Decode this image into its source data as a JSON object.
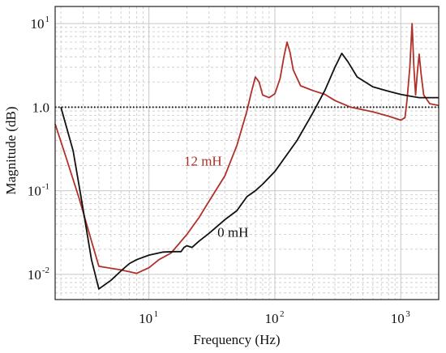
{
  "chart_data": {
    "type": "line",
    "title": "",
    "xlabel": "Frequency (Hz)",
    "ylabel": "Magnitude (dB)",
    "xscale": "log",
    "yscale": "log",
    "xlim": [
      1.8,
      2000
    ],
    "ylim": [
      0.005,
      16
    ],
    "grid": true,
    "x_ticks": [
      {
        "base": "10",
        "exp": "1",
        "value": 10
      },
      {
        "base": "10",
        "exp": "2",
        "value": 100
      },
      {
        "base": "10",
        "exp": "3",
        "value": 1000
      }
    ],
    "y_ticks": [
      {
        "base": "10",
        "exp": "-2",
        "value": 0.01
      },
      {
        "base": "10",
        "exp": "-1",
        "value": 0.1
      },
      {
        "base": "1.0",
        "exp": "",
        "value": 1
      },
      {
        "base": "10",
        "exp": "1",
        "value": 10
      }
    ],
    "reference_line": {
      "y": 1.0,
      "style": "dotted",
      "color": "#111111"
    },
    "series": [
      {
        "name": "12 mH",
        "color": "#b0302a",
        "points": [
          [
            1.8,
            0.63
          ],
          [
            2.2,
            0.25
          ],
          [
            2.8,
            0.08
          ],
          [
            3.5,
            0.025
          ],
          [
            4.0,
            0.0125
          ],
          [
            6.0,
            0.0113
          ],
          [
            8.0,
            0.0103
          ],
          [
            10.0,
            0.012
          ],
          [
            12.0,
            0.015
          ],
          [
            15.0,
            0.018
          ],
          [
            20.0,
            0.03
          ],
          [
            25.0,
            0.048
          ],
          [
            30.0,
            0.075
          ],
          [
            40.0,
            0.15
          ],
          [
            50.0,
            0.35
          ],
          [
            60.0,
            0.9
          ],
          [
            65.0,
            1.5
          ],
          [
            70.0,
            2.3
          ],
          [
            75.0,
            2.0
          ],
          [
            80.0,
            1.4
          ],
          [
            90.0,
            1.3
          ],
          [
            100.0,
            1.45
          ],
          [
            110.0,
            2.2
          ],
          [
            118.0,
            4.0
          ],
          [
            125.0,
            6.0
          ],
          [
            132.0,
            4.5
          ],
          [
            140.0,
            2.8
          ],
          [
            160.0,
            1.8
          ],
          [
            200.0,
            1.58
          ],
          [
            250.0,
            1.42
          ],
          [
            300.0,
            1.2
          ],
          [
            400.0,
            1.0
          ],
          [
            600.0,
            0.88
          ],
          [
            800.0,
            0.78
          ],
          [
            1000.0,
            0.7
          ],
          [
            1080.0,
            0.75
          ],
          [
            1120.0,
            1.2
          ],
          [
            1180.0,
            3.0
          ],
          [
            1230.0,
            10.0
          ],
          [
            1270.0,
            3.0
          ],
          [
            1310.0,
            1.4
          ],
          [
            1350.0,
            2.5
          ],
          [
            1400.0,
            4.3
          ],
          [
            1450.0,
            2.5
          ],
          [
            1520.0,
            1.4
          ],
          [
            1700.0,
            1.1
          ],
          [
            2000.0,
            1.05
          ]
        ]
      },
      {
        "name": "0 mH",
        "color": "#111111",
        "points": [
          [
            2.0,
            1.0
          ],
          [
            2.5,
            0.3
          ],
          [
            3.0,
            0.06
          ],
          [
            3.5,
            0.015
          ],
          [
            4.0,
            0.0067
          ],
          [
            5.0,
            0.0085
          ],
          [
            6.0,
            0.011
          ],
          [
            7.0,
            0.0135
          ],
          [
            8.0,
            0.015
          ],
          [
            10.0,
            0.017
          ],
          [
            13.0,
            0.0185
          ],
          [
            16.0,
            0.0187
          ],
          [
            18.0,
            0.0187
          ],
          [
            19.0,
            0.021
          ],
          [
            20.0,
            0.022
          ],
          [
            22.0,
            0.021
          ],
          [
            25.0,
            0.025
          ],
          [
            30.0,
            0.031
          ],
          [
            40.0,
            0.045
          ],
          [
            50.0,
            0.058
          ],
          [
            60.0,
            0.085
          ],
          [
            70.0,
            0.1
          ],
          [
            80.0,
            0.12
          ],
          [
            100.0,
            0.17
          ],
          [
            150.0,
            0.4
          ],
          [
            200.0,
            0.85
          ],
          [
            250.0,
            1.6
          ],
          [
            300.0,
            3.0
          ],
          [
            340.0,
            4.4
          ],
          [
            380.0,
            3.5
          ],
          [
            450.0,
            2.3
          ],
          [
            600.0,
            1.75
          ],
          [
            800.0,
            1.55
          ],
          [
            1000.0,
            1.42
          ],
          [
            1200.0,
            1.35
          ],
          [
            1400.0,
            1.3
          ],
          [
            2000.0,
            1.3
          ]
        ]
      }
    ],
    "annotations": [
      {
        "text": "12 mH",
        "series": "12 mH",
        "x": 19,
        "y": 0.2
      },
      {
        "text": "0 mH",
        "series": "0 mH",
        "x": 35,
        "y": 0.028
      }
    ]
  }
}
